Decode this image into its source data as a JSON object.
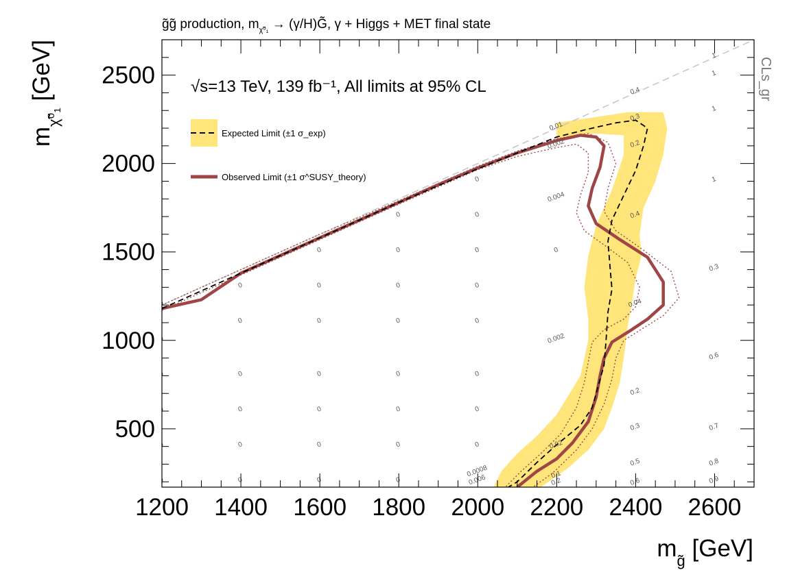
{
  "chart_data": {
    "type": "line",
    "title": "g̃g̃ production, m",
    "title_sub": "χ̃⁰₁",
    "title_rest": " → (γ/H)G̃, γ + Higgs + MET final state",
    "xlabel_main": "m",
    "xlabel_sub": "g̃",
    "xlabel_unit": " [GeV]",
    "ylabel_main": "m",
    "ylabel_sub": "χ̃⁰₁",
    "ylabel_unit": " [GeV]",
    "z_label": "CLs_gr",
    "xlim": [
      1200,
      2700
    ],
    "ylim": [
      170,
      2700
    ],
    "x_ticks": [
      1200,
      1400,
      1600,
      1800,
      2000,
      2200,
      2400,
      2600
    ],
    "y_ticks": [
      500,
      1000,
      1500,
      2000,
      2500
    ],
    "x_tick_labels": [
      "1200",
      "1400",
      "1600",
      "1800",
      "2000",
      "2200",
      "2400",
      "2600"
    ],
    "y_tick_labels": [
      "500",
      "1000",
      "1500",
      "2000",
      "2500"
    ],
    "annotation": "√s=13 TeV, 139 fb⁻¹, All limits at 95% CL",
    "legend": [
      {
        "label": "Expected Limit (±1 σ_exp)",
        "style": "dashed-black-with-yellow-band"
      },
      {
        "label": "Observed Limit (±1 σ^SUSY_theory)",
        "style": "solid-red"
      }
    ],
    "legend_position": "top-left",
    "colors": {
      "band": "#ffe57a",
      "observed": "#a04545",
      "expected": "#000000",
      "diagonal": "#c8c8c8"
    },
    "diagonal": [
      [
        1200,
        1200
      ],
      [
        2700,
        2700
      ]
    ],
    "expected": [
      [
        1200,
        1180
      ],
      [
        1400,
        1380
      ],
      [
        1600,
        1580
      ],
      [
        1800,
        1780
      ],
      [
        2000,
        1970
      ],
      [
        2100,
        2060
      ],
      [
        2200,
        2150
      ],
      [
        2280,
        2195
      ],
      [
        2350,
        2230
      ],
      [
        2400,
        2245
      ],
      [
        2430,
        2200
      ],
      [
        2420,
        2100
      ],
      [
        2400,
        1960
      ],
      [
        2370,
        1820
      ],
      [
        2340,
        1680
      ],
      [
        2330,
        1560
      ],
      [
        2335,
        1420
      ],
      [
        2340,
        1290
      ],
      [
        2330,
        1160
      ],
      [
        2325,
        1000
      ],
      [
        2320,
        860
      ],
      [
        2290,
        620
      ],
      [
        2260,
        520
      ],
      [
        2200,
        410
      ],
      [
        2150,
        310
      ],
      [
        2100,
        200
      ],
      [
        2070,
        160
      ]
    ],
    "expected_band_outer": [
      [
        2200,
        2230
      ],
      [
        2290,
        2260
      ],
      [
        2380,
        2290
      ],
      [
        2470,
        2290
      ],
      [
        2480,
        2200
      ],
      [
        2470,
        2050
      ],
      [
        2450,
        1900
      ],
      [
        2420,
        1750
      ],
      [
        2410,
        1600
      ],
      [
        2415,
        1480
      ],
      [
        2400,
        1350
      ],
      [
        2390,
        1200
      ],
      [
        2380,
        1080
      ],
      [
        2370,
        900
      ],
      [
        2360,
        760
      ],
      [
        2340,
        620
      ],
      [
        2320,
        500
      ],
      [
        2280,
        380
      ],
      [
        2230,
        280
      ],
      [
        2160,
        170
      ]
    ],
    "expected_band_inner": [
      [
        2200,
        2140
      ],
      [
        2290,
        2170
      ],
      [
        2370,
        2160
      ],
      [
        2370,
        2050
      ],
      [
        2340,
        1850
      ],
      [
        2300,
        1650
      ],
      [
        2280,
        1480
      ],
      [
        2270,
        1300
      ],
      [
        2280,
        1120
      ],
      [
        2280,
        1000
      ],
      [
        2260,
        800
      ],
      [
        2200,
        580
      ],
      [
        2150,
        460
      ],
      [
        2100,
        360
      ],
      [
        2060,
        260
      ],
      [
        2040,
        170
      ]
    ],
    "observed": [
      [
        1200,
        1180
      ],
      [
        1300,
        1230
      ],
      [
        1400,
        1380
      ],
      [
        1500,
        1480
      ],
      [
        1600,
        1580
      ],
      [
        1700,
        1680
      ],
      [
        1800,
        1780
      ],
      [
        1900,
        1880
      ],
      [
        2000,
        1975
      ],
      [
        2100,
        2060
      ],
      [
        2200,
        2130
      ],
      [
        2260,
        2160
      ],
      [
        2300,
        2150
      ],
      [
        2320,
        2100
      ],
      [
        2310,
        1980
      ],
      [
        2290,
        1860
      ],
      [
        2280,
        1760
      ],
      [
        2300,
        1660
      ],
      [
        2360,
        1570
      ],
      [
        2430,
        1470
      ],
      [
        2470,
        1330
      ],
      [
        2470,
        1200
      ],
      [
        2430,
        1120
      ],
      [
        2390,
        1060
      ],
      [
        2340,
        990
      ],
      [
        2320,
        900
      ],
      [
        2310,
        800
      ],
      [
        2300,
        680
      ],
      [
        2280,
        540
      ],
      [
        2240,
        420
      ],
      [
        2200,
        330
      ],
      [
        2150,
        260
      ],
      [
        2100,
        170
      ]
    ],
    "observed_up": [
      [
        1200,
        1200
      ],
      [
        1400,
        1400
      ],
      [
        1600,
        1600
      ],
      [
        1800,
        1790
      ],
      [
        2000,
        1985
      ],
      [
        2100,
        2070
      ],
      [
        2200,
        2140
      ],
      [
        2280,
        2170
      ],
      [
        2330,
        2120
      ],
      [
        2350,
        2000
      ],
      [
        2330,
        1860
      ],
      [
        2320,
        1730
      ],
      [
        2350,
        1620
      ],
      [
        2420,
        1510
      ],
      [
        2490,
        1390
      ],
      [
        2510,
        1240
      ],
      [
        2470,
        1140
      ],
      [
        2420,
        1070
      ],
      [
        2370,
        1000
      ],
      [
        2350,
        900
      ],
      [
        2340,
        780
      ],
      [
        2320,
        640
      ],
      [
        2290,
        500
      ],
      [
        2250,
        380
      ],
      [
        2190,
        250
      ],
      [
        2140,
        170
      ]
    ],
    "observed_down": [
      [
        1200,
        1170
      ],
      [
        1400,
        1370
      ],
      [
        1600,
        1570
      ],
      [
        1800,
        1770
      ],
      [
        2000,
        1965
      ],
      [
        2100,
        2040
      ],
      [
        2200,
        2090
      ],
      [
        2250,
        2110
      ],
      [
        2280,
        2060
      ],
      [
        2280,
        1950
      ],
      [
        2260,
        1820
      ],
      [
        2250,
        1720
      ],
      [
        2270,
        1620
      ],
      [
        2320,
        1540
      ],
      [
        2380,
        1440
      ],
      [
        2410,
        1300
      ],
      [
        2400,
        1190
      ],
      [
        2370,
        1120
      ],
      [
        2320,
        1060
      ],
      [
        2290,
        990
      ],
      [
        2280,
        880
      ],
      [
        2270,
        760
      ],
      [
        2250,
        620
      ],
      [
        2210,
        470
      ],
      [
        2160,
        360
      ],
      [
        2110,
        260
      ],
      [
        2070,
        170
      ]
    ],
    "cls_values": [
      {
        "x": 1200,
        "y": 1200,
        "label": "0"
      },
      {
        "x": 1200,
        "y": 1000,
        "label": "0"
      },
      {
        "x": 1200,
        "y": 800,
        "label": "0"
      },
      {
        "x": 1200,
        "y": 600,
        "label": "0"
      },
      {
        "x": 1200,
        "y": 400,
        "label": "0"
      },
      {
        "x": 1200,
        "y": 200,
        "label": "0"
      },
      {
        "x": 1400,
        "y": 1300,
        "label": "0"
      },
      {
        "x": 1400,
        "y": 1100,
        "label": "0"
      },
      {
        "x": 1400,
        "y": 800,
        "label": "0"
      },
      {
        "x": 1400,
        "y": 600,
        "label": "0"
      },
      {
        "x": 1400,
        "y": 400,
        "label": "0"
      },
      {
        "x": 1400,
        "y": 200,
        "label": "0"
      },
      {
        "x": 1600,
        "y": 1500,
        "label": "0"
      },
      {
        "x": 1600,
        "y": 1300,
        "label": "0"
      },
      {
        "x": 1600,
        "y": 1100,
        "label": "0"
      },
      {
        "x": 1600,
        "y": 800,
        "label": "0"
      },
      {
        "x": 1600,
        "y": 600,
        "label": "0"
      },
      {
        "x": 1600,
        "y": 400,
        "label": "0"
      },
      {
        "x": 1600,
        "y": 200,
        "label": "0"
      },
      {
        "x": 1800,
        "y": 1700,
        "label": "0"
      },
      {
        "x": 1800,
        "y": 1500,
        "label": "0"
      },
      {
        "x": 1800,
        "y": 1300,
        "label": "0"
      },
      {
        "x": 1800,
        "y": 1100,
        "label": "0"
      },
      {
        "x": 1800,
        "y": 800,
        "label": "0"
      },
      {
        "x": 1800,
        "y": 600,
        "label": "0"
      },
      {
        "x": 1800,
        "y": 400,
        "label": "0"
      },
      {
        "x": 1800,
        "y": 200,
        "label": "0"
      },
      {
        "x": 2000,
        "y": 1900,
        "label": "0"
      },
      {
        "x": 2000,
        "y": 1700,
        "label": "0"
      },
      {
        "x": 2000,
        "y": 1500,
        "label": "0"
      },
      {
        "x": 2000,
        "y": 1300,
        "label": "0"
      },
      {
        "x": 2000,
        "y": 1100,
        "label": "0"
      },
      {
        "x": 2000,
        "y": 800,
        "label": "0"
      },
      {
        "x": 2000,
        "y": 600,
        "label": "0"
      },
      {
        "x": 2000,
        "y": 400,
        "label": "0"
      },
      {
        "x": 2000,
        "y": 250,
        "label": "0.0008"
      },
      {
        "x": 2000,
        "y": 200,
        "label": "0.006"
      },
      {
        "x": 2200,
        "y": 2200,
        "label": "0.01"
      },
      {
        "x": 2200,
        "y": 2100,
        "label": "0.002"
      },
      {
        "x": 2200,
        "y": 1800,
        "label": "0.004"
      },
      {
        "x": 2200,
        "y": 1500,
        "label": "0"
      },
      {
        "x": 2200,
        "y": 1000,
        "label": "0.002"
      },
      {
        "x": 2200,
        "y": 400,
        "label": "0.02"
      },
      {
        "x": 2200,
        "y": 230,
        "label": "0.1"
      },
      {
        "x": 2200,
        "y": 190,
        "label": "0.2"
      },
      {
        "x": 2400,
        "y": 2400,
        "label": "0.4"
      },
      {
        "x": 2400,
        "y": 2250,
        "label": "0.3"
      },
      {
        "x": 2400,
        "y": 2100,
        "label": "0.2"
      },
      {
        "x": 2400,
        "y": 1700,
        "label": "0.4"
      },
      {
        "x": 2400,
        "y": 1200,
        "label": "0.04"
      },
      {
        "x": 2400,
        "y": 700,
        "label": "0.2"
      },
      {
        "x": 2400,
        "y": 500,
        "label": "0.3"
      },
      {
        "x": 2400,
        "y": 300,
        "label": "0.5"
      },
      {
        "x": 2400,
        "y": 190,
        "label": "0.6"
      },
      {
        "x": 2600,
        "y": 2600,
        "label": "1"
      },
      {
        "x": 2600,
        "y": 2500,
        "label": "1"
      },
      {
        "x": 2600,
        "y": 2300,
        "label": "1"
      },
      {
        "x": 2600,
        "y": 1900,
        "label": "1"
      },
      {
        "x": 2600,
        "y": 1400,
        "label": "0.3"
      },
      {
        "x": 2600,
        "y": 900,
        "label": "0.6"
      },
      {
        "x": 2600,
        "y": 500,
        "label": "0.7"
      },
      {
        "x": 2600,
        "y": 300,
        "label": "0.8"
      },
      {
        "x": 2600,
        "y": 200,
        "label": "0.9"
      }
    ]
  }
}
